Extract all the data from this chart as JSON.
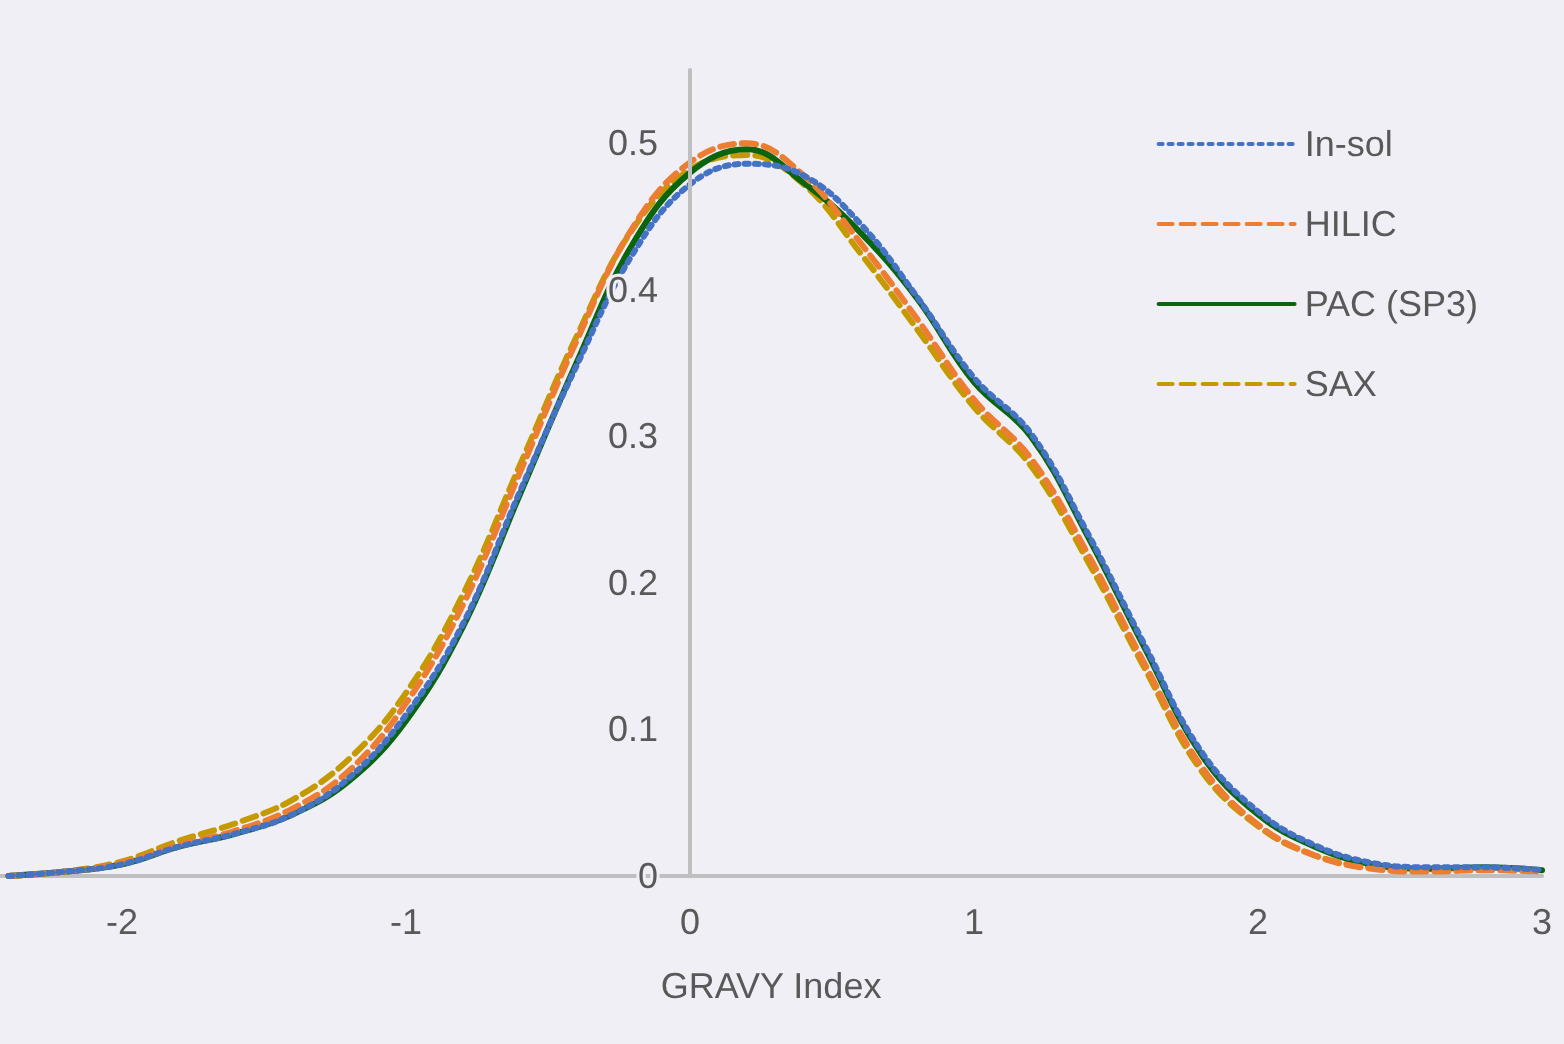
{
  "chart_data": {
    "type": "line",
    "xlabel": "GRAVY Index",
    "x": [
      -2.4,
      -2.2,
      -2.0,
      -1.8,
      -1.6,
      -1.4,
      -1.2,
      -1.0,
      -0.8,
      -0.6,
      -0.4,
      -0.2,
      0,
      0.2,
      0.4,
      0.6,
      0.8,
      1.0,
      1.2,
      1.4,
      1.6,
      1.8,
      2.0,
      2.2,
      2.4,
      2.6,
      2.8,
      3.0
    ],
    "series": [
      {
        "name": "In-sol",
        "color": "#4472c4",
        "line_style": "dotted",
        "values": [
          0,
          0.003,
          0.008,
          0.02,
          0.029,
          0.042,
          0.067,
          0.11,
          0.172,
          0.262,
          0.348,
          0.425,
          0.472,
          0.486,
          0.478,
          0.445,
          0.395,
          0.34,
          0.302,
          0.234,
          0.158,
          0.085,
          0.044,
          0.021,
          0.009,
          0.006,
          0.006,
          0.004
        ]
      },
      {
        "name": "HILIC",
        "color": "#ed7d31",
        "line_style": "dashed",
        "values": [
          0,
          0.003,
          0.009,
          0.021,
          0.031,
          0.046,
          0.072,
          0.118,
          0.185,
          0.275,
          0.365,
          0.443,
          0.487,
          0.5,
          0.478,
          0.432,
          0.38,
          0.325,
          0.285,
          0.22,
          0.145,
          0.075,
          0.035,
          0.014,
          0.005,
          0.003,
          0.004,
          0.003
        ]
      },
      {
        "name": "PAC (SP3)",
        "color": "#0b650f",
        "line_style": "solid",
        "values": [
          0,
          0.003,
          0.008,
          0.02,
          0.029,
          0.042,
          0.065,
          0.106,
          0.17,
          0.26,
          0.35,
          0.432,
          0.48,
          0.496,
          0.473,
          0.439,
          0.394,
          0.337,
          0.3,
          0.232,
          0.156,
          0.083,
          0.042,
          0.02,
          0.008,
          0.005,
          0.006,
          0.004
        ]
      },
      {
        "name": "SAX",
        "color": "#c49a00",
        "line_style": "dashed",
        "values": [
          0,
          0.003,
          0.01,
          0.024,
          0.036,
          0.052,
          0.08,
          0.125,
          0.192,
          0.28,
          0.368,
          0.442,
          0.482,
          0.492,
          0.472,
          0.425,
          0.373,
          0.32,
          0.28,
          0.215,
          0.142,
          0.072,
          0.034,
          0.014,
          0.006,
          0.004,
          0.005,
          0.003
        ]
      }
    ],
    "xlim": [
      -2.43,
      3
    ],
    "xticks": [
      -2,
      -1,
      0,
      1,
      2,
      3
    ],
    "ylim": [
      0,
      0.55
    ],
    "yticks": [
      0,
      0.1,
      0.2,
      0.3,
      0.4,
      0.5
    ],
    "legend": "top right",
    "grid": false,
    "marker": "none"
  }
}
